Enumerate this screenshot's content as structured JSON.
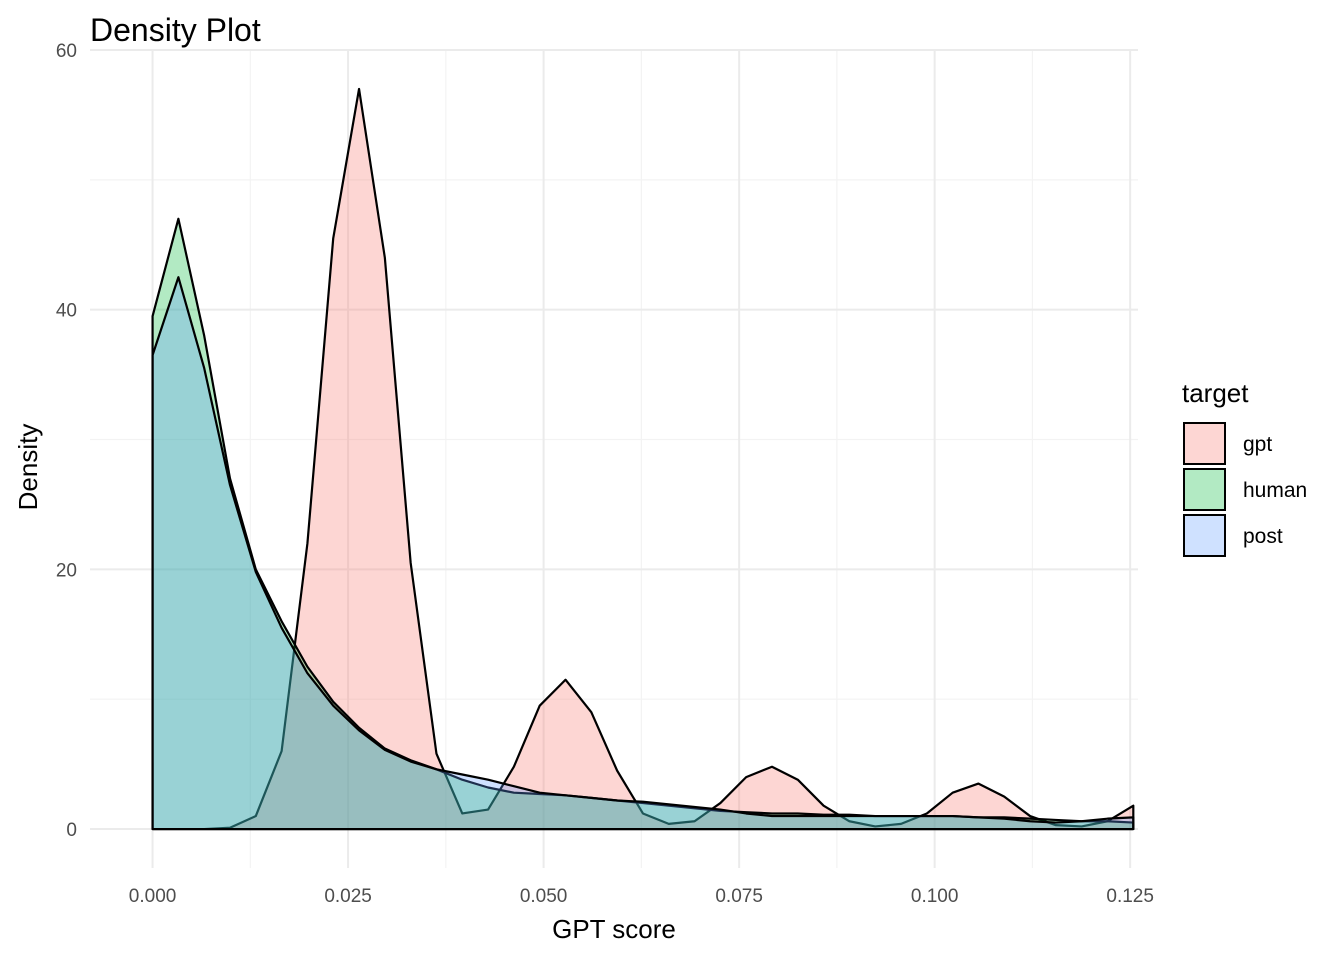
{
  "chart_data": {
    "type": "area",
    "title": "Density Plot",
    "xlabel": "GPT score",
    "ylabel": "Density",
    "xlim": [
      -0.008,
      0.126
    ],
    "ylim": [
      -3,
      60
    ],
    "x_ticks": [
      0.0,
      0.025,
      0.05,
      0.075,
      0.1,
      0.125
    ],
    "x_tick_labels": [
      "0.000",
      "0.025",
      "0.050",
      "0.075",
      "0.100",
      "0.125"
    ],
    "y_ticks": [
      0,
      20,
      40,
      60
    ],
    "y_tick_labels": [
      "0",
      "20",
      "40",
      "60"
    ],
    "grid": true,
    "legend": {
      "title": "target",
      "position": "right"
    },
    "x": [
      0.0,
      0.0033,
      0.0066,
      0.0099,
      0.0132,
      0.0165,
      0.0198,
      0.0231,
      0.0264,
      0.0297,
      0.033,
      0.0363,
      0.0396,
      0.0429,
      0.0462,
      0.0495,
      0.0528,
      0.0561,
      0.0594,
      0.0627,
      0.066,
      0.0693,
      0.0726,
      0.0759,
      0.0792,
      0.0825,
      0.0858,
      0.0891,
      0.0924,
      0.0957,
      0.099,
      0.1023,
      0.1056,
      0.1089,
      0.1122,
      0.1155,
      0.1188,
      0.1221,
      0.1254
    ],
    "series": [
      {
        "name": "gpt",
        "color": "#F8766D",
        "values": [
          0.0,
          0.0,
          0.0,
          0.1,
          1.0,
          6.0,
          22.0,
          45.5,
          57.0,
          44.0,
          20.5,
          5.8,
          1.2,
          1.5,
          4.8,
          9.5,
          11.5,
          9.0,
          4.5,
          1.2,
          0.4,
          0.6,
          2.0,
          4.0,
          4.8,
          3.8,
          1.8,
          0.6,
          0.2,
          0.4,
          1.2,
          2.8,
          3.5,
          2.5,
          1.0,
          0.3,
          0.2,
          0.6,
          1.8
        ]
      },
      {
        "name": "human",
        "color": "#00BA38",
        "values": [
          39.5,
          47.0,
          38.0,
          27.0,
          20.0,
          16.0,
          12.5,
          9.8,
          7.8,
          6.2,
          5.3,
          4.6,
          3.8,
          3.2,
          2.8,
          2.7,
          2.6,
          2.4,
          2.2,
          2.0,
          1.8,
          1.6,
          1.4,
          1.3,
          1.2,
          1.2,
          1.1,
          1.1,
          1.0,
          1.0,
          1.0,
          1.0,
          0.9,
          0.9,
          0.8,
          0.7,
          0.6,
          0.6,
          0.5
        ]
      },
      {
        "name": "post",
        "color": "#619CFF",
        "values": [
          36.5,
          42.5,
          35.5,
          26.5,
          19.8,
          15.5,
          12.0,
          9.5,
          7.6,
          6.1,
          5.2,
          4.6,
          4.2,
          3.8,
          3.3,
          2.8,
          2.6,
          2.4,
          2.2,
          2.1,
          1.9,
          1.7,
          1.5,
          1.2,
          1.0,
          1.0,
          1.0,
          1.0,
          1.0,
          1.0,
          1.0,
          1.0,
          0.9,
          0.8,
          0.6,
          0.5,
          0.6,
          0.8,
          0.9
        ]
      }
    ]
  }
}
